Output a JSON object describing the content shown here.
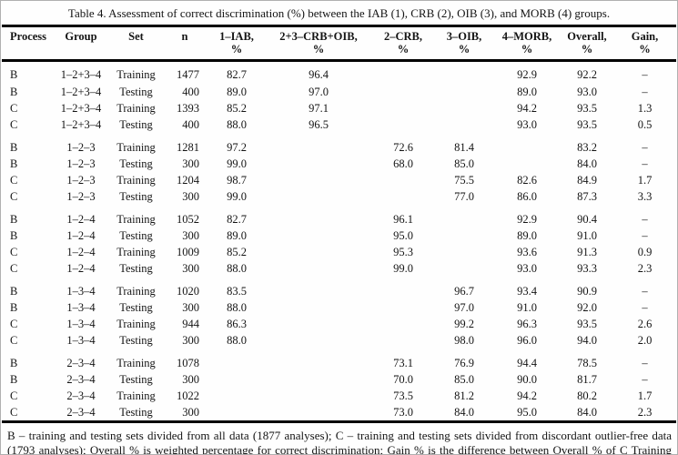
{
  "page": {
    "title": "Table 4. Assessment of correct discrimination (%) between the IAB (1), CRB (2), OIB (3), and MORB (4) groups."
  },
  "table": {
    "columns": [
      {
        "label": "Process",
        "sub": ""
      },
      {
        "label": "Group",
        "sub": ""
      },
      {
        "label": "Set",
        "sub": ""
      },
      {
        "label": "n",
        "sub": ""
      },
      {
        "label": "1–IAB,",
        "sub": "%"
      },
      {
        "label": "2+3–CRB+OIB,",
        "sub": "%"
      },
      {
        "label": "2–CRB,",
        "sub": "%"
      },
      {
        "label": "3–OIB,",
        "sub": "%"
      },
      {
        "label": "4–MORB,",
        "sub": "%"
      },
      {
        "label": "Overall,",
        "sub": "%"
      },
      {
        "label": "Gain,",
        "sub": "%"
      }
    ],
    "blocks": [
      {
        "rows": [
          [
            "B",
            "1–2+3–4",
            "Training",
            "1477",
            "82.7",
            "96.4",
            "",
            "",
            "92.9",
            "92.2",
            "–"
          ],
          [
            "B",
            "1–2+3–4",
            "Testing",
            "400",
            "89.0",
            "97.0",
            "",
            "",
            "89.0",
            "93.0",
            "–"
          ],
          [
            "C",
            "1–2+3–4",
            "Training",
            "1393",
            "85.2",
            "97.1",
            "",
            "",
            "94.2",
            "93.5",
            "1.3"
          ],
          [
            "C",
            "1–2+3–4",
            "Testing",
            "400",
            "88.0",
            "96.5",
            "",
            "",
            "93.0",
            "93.5",
            "0.5"
          ]
        ]
      },
      {
        "rows": [
          [
            "B",
            "1–2–3",
            "Training",
            "1281",
            "97.2",
            "",
            "72.6",
            "81.4",
            "",
            "83.2",
            "–"
          ],
          [
            "B",
            "1–2–3",
            "Testing",
            "300",
            "99.0",
            "",
            "68.0",
            "85.0",
            "",
            "84.0",
            "–"
          ],
          [
            "C",
            "1–2–3",
            "Training",
            "1204",
            "98.7",
            "",
            "",
            "75.5",
            "82.6",
            "84.9",
            "1.7"
          ],
          [
            "C",
            "1–2–3",
            "Testing",
            "300",
            "99.0",
            "",
            "",
            "77.0",
            "86.0",
            "87.3",
            "3.3"
          ]
        ]
      },
      {
        "rows": [
          [
            "B",
            "1–2–4",
            "Training",
            "1052",
            "82.7",
            "",
            "96.1",
            "",
            "92.9",
            "90.4",
            "–"
          ],
          [
            "B",
            "1–2–4",
            "Testing",
            "300",
            "89.0",
            "",
            "95.0",
            "",
            "89.0",
            "91.0",
            "–"
          ],
          [
            "C",
            "1–2–4",
            "Training",
            "1009",
            "85.2",
            "",
            "95.3",
            "",
            "93.6",
            "91.3",
            "0.9"
          ],
          [
            "C",
            "1–2–4",
            "Testing",
            "300",
            "88.0",
            "",
            "99.0",
            "",
            "93.0",
            "93.3",
            "2.3"
          ]
        ]
      },
      {
        "rows": [
          [
            "B",
            "1–3–4",
            "Training",
            "1020",
            "83.5",
            "",
            "",
            "96.7",
            "93.4",
            "90.9",
            "–"
          ],
          [
            "B",
            "1–3–4",
            "Testing",
            "300",
            "88.0",
            "",
            "",
            "97.0",
            "91.0",
            "92.0",
            "–"
          ],
          [
            "C",
            "1–3–4",
            "Training",
            "944",
            "86.3",
            "",
            "",
            "99.2",
            "96.3",
            "93.5",
            "2.6"
          ],
          [
            "C",
            "1–3–4",
            "Testing",
            "300",
            "88.0",
            "",
            "",
            "98.0",
            "96.0",
            "94.0",
            "2.0"
          ]
        ]
      },
      {
        "rows": [
          [
            "B",
            "2–3–4",
            "Training",
            "1078",
            "",
            "",
            "73.1",
            "76.9",
            "94.4",
            "78.5",
            "–"
          ],
          [
            "B",
            "2–3–4",
            "Testing",
            "300",
            "",
            "",
            "70.0",
            "85.0",
            "90.0",
            "81.7",
            "–"
          ],
          [
            "C",
            "2–3–4",
            "Training",
            "1022",
            "",
            "",
            "73.5",
            "81.2",
            "94.2",
            "80.2",
            "1.7"
          ],
          [
            "C",
            "2–3–4",
            "Testing",
            "300",
            "",
            "",
            "73.0",
            "84.0",
            "95.0",
            "84.0",
            "2.3"
          ]
        ]
      }
    ]
  },
  "footnote": {
    "text": "B – training and testing sets divided from all data (1877 analyses); C – training and testing sets divided from discordant outlier-free data (1793 analyses); Overall % is weighted percentage for correct discrimination; Gain % is the difference between Overall % of C Training and B Training sets, or of C Testing and B Testing sets."
  }
}
